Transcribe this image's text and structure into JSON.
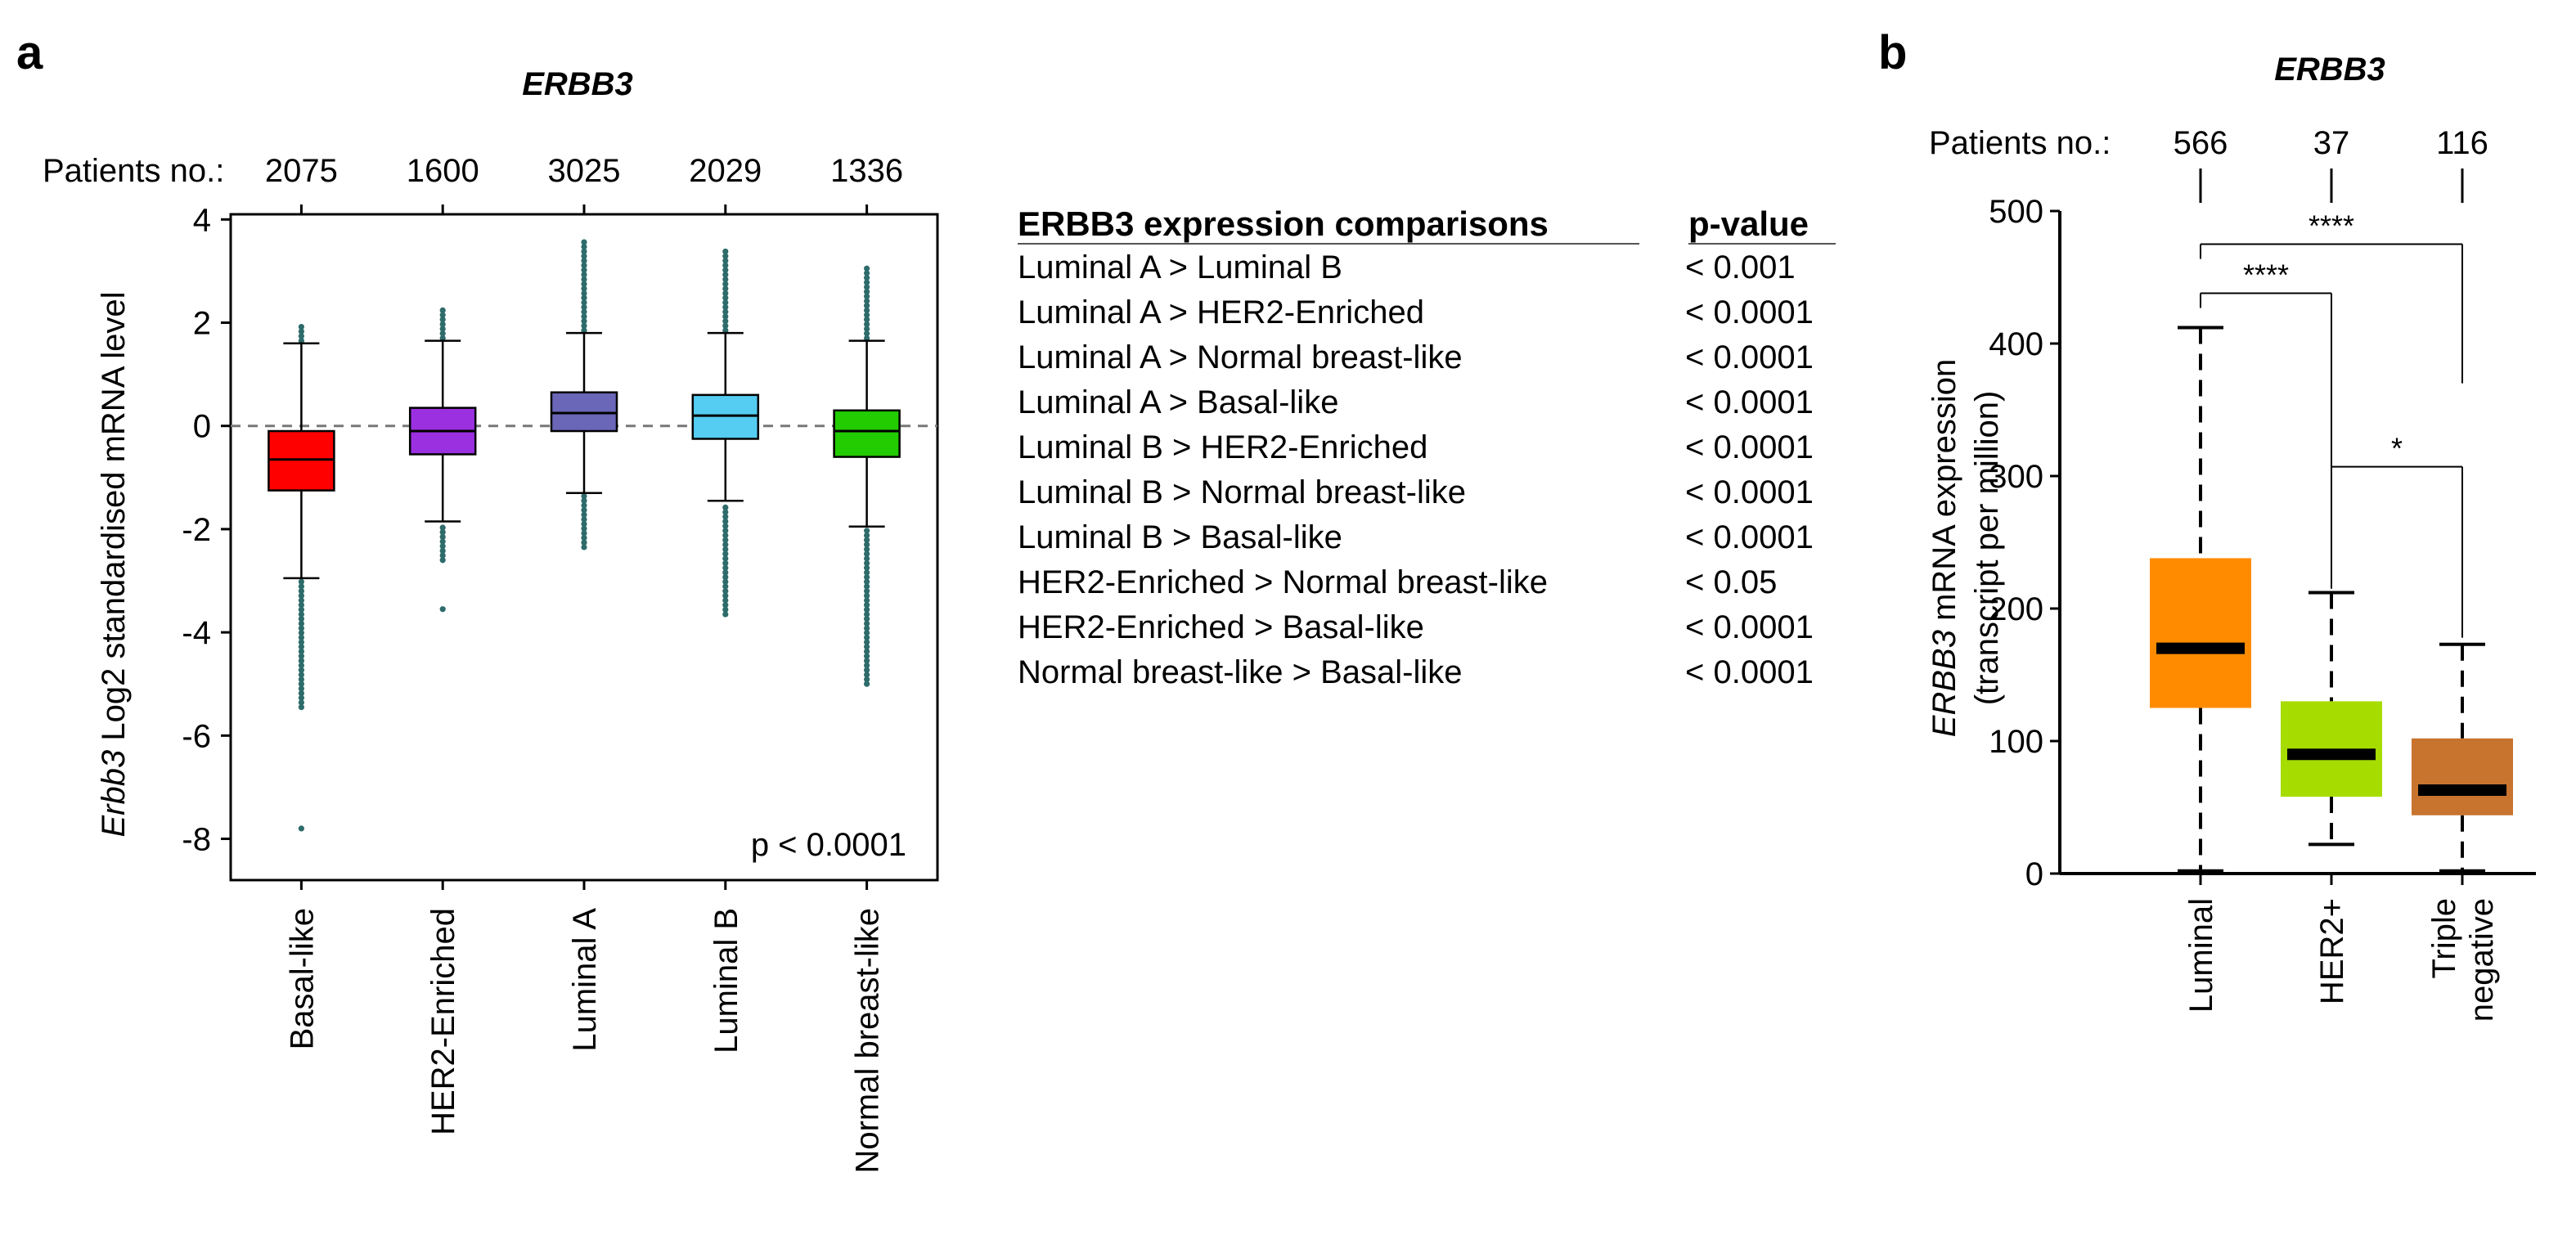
{
  "panel_a": {
    "letter": "a",
    "patients_label": "Patients no.:",
    "counts": [
      "2075",
      "1600",
      "3025",
      "2029",
      "1336"
    ],
    "ylabel_italic": "Erbb3",
    "ylabel_rest": "Log2 standardised mRNA level",
    "pvalue_note": "p < 0.0001"
  },
  "panel_b": {
    "letter": "b",
    "patients_label": "Patients no.:",
    "counts": [
      "566",
      "37",
      "116"
    ],
    "ylabel_line1_italic": "ERBB3",
    "ylabel_line1_rest": "mRNA expression",
    "ylabel_line2": "(transcript per million)",
    "category_lines": [
      [
        "Luminal"
      ],
      [
        "HER2+"
      ],
      [
        "Triple",
        "negative"
      ]
    ]
  },
  "comparison_table": {
    "header_left": "ERBB3 expression comparisons",
    "header_right": "p-value",
    "rows": [
      {
        "comparison": "Luminal A > Luminal B",
        "p": "< 0.001"
      },
      {
        "comparison": "Luminal A > HER2-Enriched",
        "p": "< 0.0001"
      },
      {
        "comparison": "Luminal A > Normal breast-like",
        "p": "< 0.0001"
      },
      {
        "comparison": "Luminal A > Basal-like",
        "p": "< 0.0001"
      },
      {
        "comparison": "Luminal B > HER2-Enriched",
        "p": "< 0.0001"
      },
      {
        "comparison": "Luminal B > Normal breast-like",
        "p": "< 0.0001"
      },
      {
        "comparison": "Luminal B > Basal-like",
        "p": "< 0.0001"
      },
      {
        "comparison": "HER2-Enriched > Normal breast-like",
        "p": "< 0.05"
      },
      {
        "comparison": "HER2-Enriched > Basal-like",
        "p": "< 0.0001"
      },
      {
        "comparison": "Normal breast-like > Basal-like",
        "p": "< 0.0001"
      }
    ]
  },
  "chart_data": [
    {
      "type": "box",
      "title": "ERBB3",
      "xlabel": "",
      "ylabel": "Erbb3 Log2 standardised mRNA level",
      "ylim": [
        -8.8,
        4.1
      ],
      "yticks": [
        4,
        2,
        0,
        -2,
        -4,
        -6,
        -8
      ],
      "grid": false,
      "reference_line_y": 0,
      "categories": [
        "Basal-like",
        "HER2-Enriched",
        "Luminal A",
        "Luminal B",
        "Normal breast-like"
      ],
      "colors": [
        "#ff0000",
        "#9b30e0",
        "#6a66b8",
        "#55ccf2",
        "#22cc00"
      ],
      "outlier_color": "#2e6b6b",
      "boxes": [
        {
          "q1": -1.25,
          "median": -0.65,
          "q3": -0.1,
          "whisker_low": -2.95,
          "whisker_high": 1.6,
          "outliers_low": [
            -3.0,
            -5.45
          ],
          "outliers_high": [
            1.65,
            1.95
          ],
          "outlier_extreme": [
            -7.8
          ]
        },
        {
          "q1": -0.55,
          "median": -0.1,
          "q3": 0.35,
          "whisker_low": -1.85,
          "whisker_high": 1.65,
          "outliers_low": [
            -1.9,
            -2.6
          ],
          "outliers_high": [
            1.7,
            2.25
          ],
          "outlier_extreme": [
            -3.55
          ]
        },
        {
          "q1": -0.1,
          "median": 0.25,
          "q3": 0.65,
          "whisker_low": -1.3,
          "whisker_high": 1.8,
          "outliers_low": [
            -1.35,
            -2.35
          ],
          "outliers_high": [
            1.85,
            3.6
          ],
          "outlier_extreme": []
        },
        {
          "q1": -0.25,
          "median": 0.2,
          "q3": 0.6,
          "whisker_low": -1.45,
          "whisker_high": 1.8,
          "outliers_low": [
            -1.5,
            -3.65
          ],
          "outliers_high": [
            1.85,
            3.4
          ],
          "outlier_extreme": []
        },
        {
          "q1": -0.6,
          "median": -0.1,
          "q3": 0.3,
          "whisker_low": -1.95,
          "whisker_high": 1.65,
          "outliers_low": [
            -2.0,
            -5.0
          ],
          "outliers_high": [
            1.7,
            3.1
          ],
          "outlier_extreme": []
        }
      ],
      "annotation": "p < 0.0001"
    },
    {
      "type": "box",
      "title": "ERBB3",
      "xlabel": "",
      "ylabel": "ERBB3 mRNA expression (transcript per million)",
      "ylim": [
        0,
        500
      ],
      "yticks": [
        500,
        400,
        300,
        200,
        100,
        0
      ],
      "grid": false,
      "categories": [
        "Luminal",
        "HER2+",
        "Triple negative"
      ],
      "colors": [
        "#ff8c00",
        "#a6dc00",
        "#c8732e"
      ],
      "boxes": [
        {
          "q1": 125,
          "median": 170,
          "q3": 238,
          "whisker_low": 2,
          "whisker_high": 412
        },
        {
          "q1": 58,
          "median": 90,
          "q3": 130,
          "whisker_low": 22,
          "whisker_high": 212
        },
        {
          "q1": 44,
          "median": 63,
          "q3": 102,
          "whisker_low": 2,
          "whisker_high": 173
        }
      ],
      "significance": [
        {
          "from": 0,
          "to": 1,
          "label": "****",
          "y": 438,
          "drop_to": 215
        },
        {
          "from": 0,
          "to": 2,
          "label": "****",
          "y": 475,
          "drop_to": 370
        },
        {
          "from": 1,
          "to": 2,
          "label": "*",
          "y": 307,
          "drop_to": 178
        }
      ]
    }
  ]
}
